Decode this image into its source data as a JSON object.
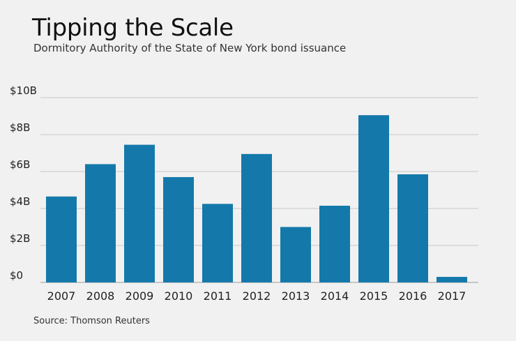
{
  "title": "Tipping the Scale",
  "subtitle": "Dormitory Authority of the State of New York bond issuance",
  "source": "Source: Thomson Reuters",
  "colors": {
    "bar": "#1479aa",
    "grid": "#c8c8c8",
    "background": "#f1f1f1"
  },
  "chart_data": {
    "type": "bar",
    "categories": [
      "2007",
      "2008",
      "2009",
      "2010",
      "2011",
      "2012",
      "2013",
      "2014",
      "2015",
      "2016",
      "2017"
    ],
    "values": [
      4.65,
      6.4,
      7.45,
      5.7,
      4.25,
      6.95,
      3.0,
      4.15,
      9.05,
      5.85,
      0.3
    ],
    "unit": "billion USD",
    "ylim": [
      0,
      10
    ],
    "yticks": [
      0,
      2,
      4,
      6,
      8,
      10
    ],
    "ytick_labels": [
      "$0",
      "$2B",
      "$4B",
      "$6B",
      "$8B",
      "$10B"
    ],
    "grid": true
  }
}
